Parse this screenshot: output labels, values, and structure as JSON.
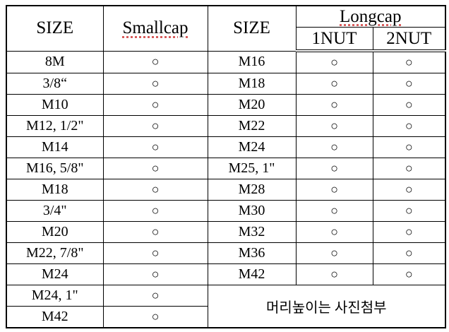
{
  "header": {
    "size_left": "SIZE",
    "smallcap": "Smallcap",
    "size_right": "SIZE",
    "longcap": "Longcap",
    "nut1": "1NUT",
    "nut2": "2NUT"
  },
  "rows": [
    [
      "8M",
      "○",
      "M16",
      "○",
      "○"
    ],
    [
      "3/8“",
      "○",
      "M18",
      "○",
      "○"
    ],
    [
      "M10",
      "○",
      "M20",
      "○",
      "○"
    ],
    [
      "M12, 1/2\"",
      "○",
      "M22",
      "○",
      "○"
    ],
    [
      "M14",
      "○",
      "M24",
      "○",
      "○"
    ],
    [
      "M16, 5/8\"",
      "○",
      "M25, 1\"",
      "○",
      "○"
    ],
    [
      "M18",
      "○",
      "M28",
      "○",
      "○"
    ],
    [
      "3/4\"",
      "○",
      "M30",
      "○",
      "○"
    ],
    [
      "M20",
      "○",
      "M32",
      "○",
      "○"
    ],
    [
      "M22, 7/8\"",
      "○",
      "M36",
      "○",
      "○"
    ],
    [
      "M24",
      "○",
      "M42",
      "○",
      "○"
    ],
    [
      "M24, 1\"",
      "○"
    ],
    [
      "M42",
      "○"
    ]
  ],
  "note": "머리높이는 사진첨부"
}
